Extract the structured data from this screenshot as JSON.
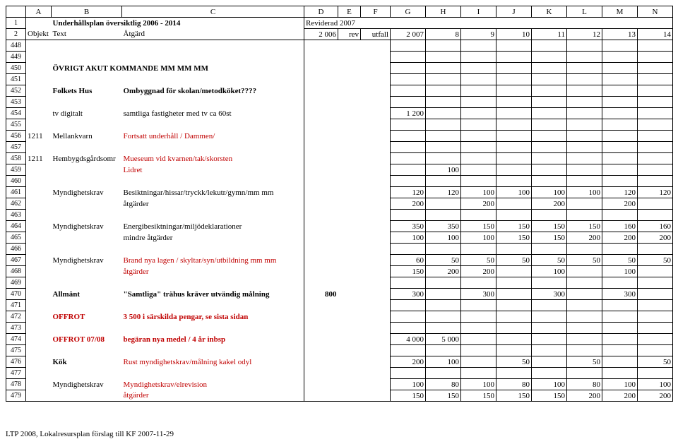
{
  "colheads": [
    "A",
    "B",
    "C",
    "D",
    "E",
    "F",
    "G",
    "H",
    "I",
    "J",
    "K",
    "L",
    "M",
    "N"
  ],
  "row1": {
    "num": "1",
    "title": "Underhållsplan översiktlig 2006 - 2014",
    "rev": "Reviderad 2007"
  },
  "row2": {
    "num": "2",
    "a": "Objekt",
    "b": "Text",
    "c": "Åtgärd",
    "d": "2 006",
    "e": "rev",
    "f": "utfall",
    "g": "2 007",
    "h": "8",
    "i": "9",
    "j": "10",
    "k": "11",
    "l": "12",
    "m": "13",
    "n": "14"
  },
  "rows": [
    {
      "num": "448"
    },
    {
      "num": "449"
    },
    {
      "num": "450",
      "b": "ÖVRIGT AKUT KOMMANDE MM MM MM",
      "bold": true
    },
    {
      "num": "451"
    },
    {
      "num": "452",
      "b": "Folkets Hus",
      "bold": true,
      "c": "Ombyggnad för skolan/metodköket????",
      "cbold": true
    },
    {
      "num": "453"
    },
    {
      "num": "454",
      "b": "tv digitalt",
      "c": "samtliga fastigheter med tv ca 60st",
      "g": "1 200"
    },
    {
      "num": "455"
    },
    {
      "num": "456",
      "a": "1211",
      "b": "Mellankvarn",
      "c": "Fortsatt underhåll / Dammen/",
      "cred": true
    },
    {
      "num": "457"
    },
    {
      "num": "458",
      "a": "1211",
      "b": "Hembygdsgårdsomr",
      "c": "Mueseum vid kvarnen/tak/skorsten",
      "cred": true
    },
    {
      "num": "459",
      "c": "Lidret",
      "cred": true,
      "h": "100"
    },
    {
      "num": "460"
    },
    {
      "num": "461",
      "b": "Myndighetskrav",
      "c": "Besiktningar/hissar/tryckk/lekutr/gymn/mm mm",
      "g": "120",
      "h": "120",
      "i": "100",
      "j": "100",
      "k": "100",
      "l": "100",
      "m": "120",
      "n": "120"
    },
    {
      "num": "462",
      "c": "åtgärder",
      "g": "200",
      "i": "200",
      "k": "200",
      "m": "200"
    },
    {
      "num": "463"
    },
    {
      "num": "464",
      "b": "Myndighetskrav",
      "c": "Energibesiktningar/miljödeklarationer",
      "g": "350",
      "h": "350",
      "i": "150",
      "j": "150",
      "k": "150",
      "l": "150",
      "m": "160",
      "n": "160"
    },
    {
      "num": "465",
      "c": "mindre åtgärder",
      "g": "100",
      "h": "100",
      "i": "100",
      "j": "150",
      "k": "150",
      "l": "200",
      "m": "200",
      "n": "200"
    },
    {
      "num": "466"
    },
    {
      "num": "467",
      "b": "Myndighetskrav",
      "c": "Brand nya lagen / skyltar/syn/utbildning mm mm",
      "cred": true,
      "g": "60",
      "h": "50",
      "i": "50",
      "j": "50",
      "k": "50",
      "l": "50",
      "m": "50",
      "n": "50"
    },
    {
      "num": "468",
      "c": "åtgärder",
      "cred": true,
      "g": "150",
      "h": "200",
      "i": "200",
      "k": "100",
      "m": "100"
    },
    {
      "num": "469"
    },
    {
      "num": "470",
      "b": "Allmänt",
      "bold": true,
      "c": "\"Samtliga\" trähus kräver utvändig målning",
      "cbold": true,
      "d": "800",
      "g": "300",
      "i": "300",
      "k": "300",
      "m": "300"
    },
    {
      "num": "471"
    },
    {
      "num": "472",
      "b": "OFFROT",
      "bold": true,
      "bred": true,
      "c": "3 500 i särskilda pengar, se sista sidan",
      "cbold": true,
      "cred": true
    },
    {
      "num": "473"
    },
    {
      "num": "474",
      "b": "OFFROT  07/08",
      "bold": true,
      "bred": true,
      "c": "begäran nya medel /  4 år inbsp",
      "cbold": true,
      "cred": true,
      "g": "4 000",
      "h": "5 000"
    },
    {
      "num": "475"
    },
    {
      "num": "476",
      "b": "Kök",
      "bold": true,
      "c": "Rust myndighetskrav/målning kakel odyl",
      "cred": true,
      "g": "200",
      "h": "100",
      "j": "50",
      "l": "50",
      "n": "50"
    },
    {
      "num": "477"
    },
    {
      "num": "478",
      "b": "Myndighetskrav",
      "c": "Myndighetskrav/elrevision",
      "cred": true,
      "g": "100",
      "h": "80",
      "i": "100",
      "j": "80",
      "k": "100",
      "l": "80",
      "m": "100",
      "n": "100"
    },
    {
      "num": "479",
      "c": "åtgärder",
      "cred": true,
      "g": "150",
      "h": "150",
      "i": "150",
      "j": "150",
      "k": "150",
      "l": "200",
      "m": "200",
      "n": "200"
    }
  ],
  "footer": "LTP 2008, Lokalresursplan förslag till KF 2007-11-29",
  "colwidths": {
    "rownum": 28,
    "A": 36,
    "B": 100,
    "C": 258,
    "D": 48,
    "E": 32,
    "F": 42,
    "G": 50,
    "H": 50,
    "I": 50,
    "J": 50,
    "K": 50,
    "L": 50,
    "M": 50,
    "N": 50
  }
}
